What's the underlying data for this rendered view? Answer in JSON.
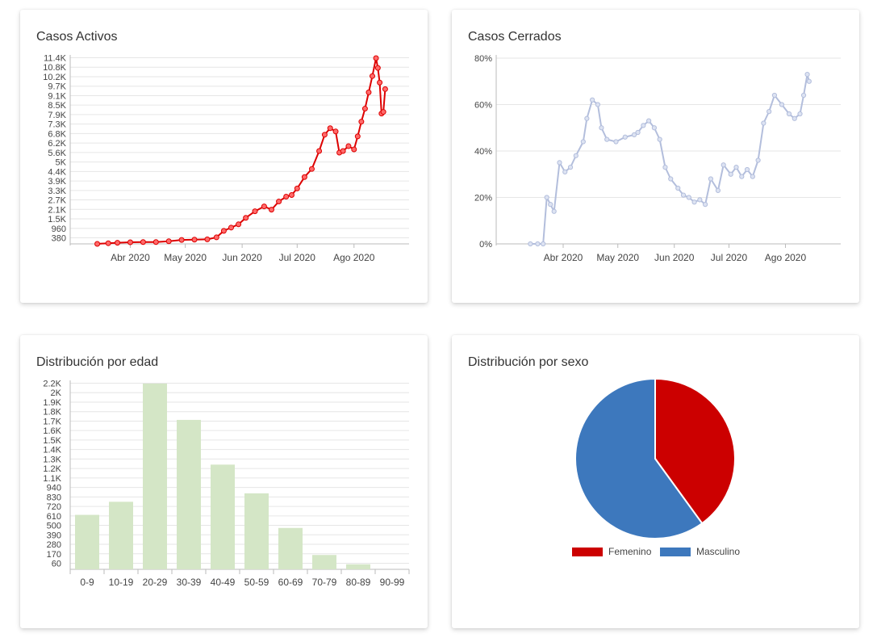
{
  "colors": {
    "activos": "#dd0000",
    "cerrados": "#b3bedc",
    "edad": "#d4e6c6",
    "femenino": "#cc0000",
    "masculino": "#3d78bd",
    "grid": "#e6e6e6",
    "axis": "#bbbbbb"
  },
  "chart_data": [
    {
      "id": "activos",
      "type": "line",
      "title": "Casos Activos",
      "x_ticks": [
        "Abr 2020",
        "May 2020",
        "Jun 2020",
        "Jul 2020",
        "Ago 2020"
      ],
      "y_ticks": [
        "380",
        "960",
        "1.5K",
        "2.1K",
        "2.7K",
        "3.3K",
        "3.9K",
        "4.4K",
        "5K",
        "5.6K",
        "6.2K",
        "6.8K",
        "7.3K",
        "7.9K",
        "8.5K",
        "9.1K",
        "9.7K",
        "10.2K",
        "10.8K",
        "11.4K"
      ],
      "ylim": [
        0,
        11400
      ],
      "grid": true,
      "x": [
        "2020-03-14",
        "2020-03-20",
        "2020-03-25",
        "2020-04-01",
        "2020-04-08",
        "2020-04-15",
        "2020-04-22",
        "2020-04-29",
        "2020-05-06",
        "2020-05-13",
        "2020-05-18",
        "2020-05-22",
        "2020-05-26",
        "2020-05-30",
        "2020-06-03",
        "2020-06-08",
        "2020-06-13",
        "2020-06-17",
        "2020-06-21",
        "2020-06-25",
        "2020-06-28",
        "2020-07-01",
        "2020-07-05",
        "2020-07-09",
        "2020-07-13",
        "2020-07-16",
        "2020-07-19",
        "2020-07-22",
        "2020-07-24",
        "2020-07-26",
        "2020-07-29",
        "2020-08-01",
        "2020-08-03",
        "2020-08-05",
        "2020-08-07",
        "2020-08-09",
        "2020-08-11",
        "2020-08-13",
        "2020-08-14",
        "2020-08-15",
        "2020-08-16",
        "2020-08-17",
        "2020-08-18"
      ],
      "values": [
        0,
        40,
        70,
        100,
        110,
        110,
        160,
        240,
        260,
        280,
        400,
        800,
        1000,
        1200,
        1600,
        2000,
        2300,
        2100,
        2600,
        2900,
        3000,
        3400,
        4100,
        4600,
        5700,
        6700,
        7100,
        6900,
        5600,
        5700,
        6000,
        5800,
        6600,
        7500,
        8300,
        9300,
        10300,
        11400,
        10800,
        9900,
        8000,
        8100,
        9500
      ]
    },
    {
      "id": "cerrados",
      "type": "line",
      "title": "Casos Cerrados",
      "x_ticks": [
        "Abr 2020",
        "May 2020",
        "Jun 2020",
        "Jul 2020",
        "Ago 2020"
      ],
      "y_ticks": [
        "0%",
        "20%",
        "40%",
        "60%",
        "80%"
      ],
      "ylim": [
        0,
        80
      ],
      "grid": true,
      "x": [
        "2020-03-14",
        "2020-03-18",
        "2020-03-21",
        "2020-03-23",
        "2020-03-25",
        "2020-03-27",
        "2020-03-30",
        "2020-04-02",
        "2020-04-05",
        "2020-04-08",
        "2020-04-12",
        "2020-04-14",
        "2020-04-17",
        "2020-04-20",
        "2020-04-22",
        "2020-04-25",
        "2020-04-30",
        "2020-05-05",
        "2020-05-10",
        "2020-05-12",
        "2020-05-15",
        "2020-05-18",
        "2020-05-21",
        "2020-05-24",
        "2020-05-27",
        "2020-05-30",
        "2020-06-03",
        "2020-06-06",
        "2020-06-09",
        "2020-06-12",
        "2020-06-15",
        "2020-06-18",
        "2020-06-21",
        "2020-06-25",
        "2020-06-28",
        "2020-07-02",
        "2020-07-05",
        "2020-07-08",
        "2020-07-11",
        "2020-07-14",
        "2020-07-17",
        "2020-07-20",
        "2020-07-23",
        "2020-07-26",
        "2020-07-30",
        "2020-08-03",
        "2020-08-06",
        "2020-08-09",
        "2020-08-11",
        "2020-08-13",
        "2020-08-14"
      ],
      "values": [
        0,
        0,
        0,
        20,
        17,
        14,
        35,
        31,
        33,
        38,
        44,
        54,
        62,
        60,
        50,
        45,
        44,
        46,
        47,
        48,
        51,
        53,
        50,
        45,
        33,
        28,
        24,
        21,
        20,
        18,
        19,
        17,
        28,
        23,
        34,
        30,
        33,
        29,
        32,
        29,
        36,
        52,
        57,
        64,
        60,
        56,
        54,
        56,
        64,
        73,
        70
      ]
    },
    {
      "id": "edad",
      "type": "bar",
      "title": "Distribución por edad",
      "categories": [
        "0-9",
        "10-19",
        "20-29",
        "30-39",
        "40-49",
        "50-59",
        "60-69",
        "70-79",
        "80-89",
        "90-99"
      ],
      "values": [
        645,
        800,
        2200,
        1770,
        1240,
        900,
        490,
        170,
        60,
        0
      ],
      "y_ticks": [
        "60",
        "170",
        "280",
        "390",
        "500",
        "610",
        "720",
        "830",
        "940",
        "1.1K",
        "1.2K",
        "1.3K",
        "1.4K",
        "1.5K",
        "1.6K",
        "1.7K",
        "1.8K",
        "1.9K",
        "2K",
        "2.2K"
      ],
      "ylim": [
        0,
        2200
      ],
      "grid": true
    },
    {
      "id": "sexo",
      "type": "pie",
      "title": "Distribución por sexo",
      "slices": [
        {
          "label": "Femenino",
          "value": 40
        },
        {
          "label": "Masculino",
          "value": 60
        }
      ],
      "legend": "bottom"
    }
  ]
}
